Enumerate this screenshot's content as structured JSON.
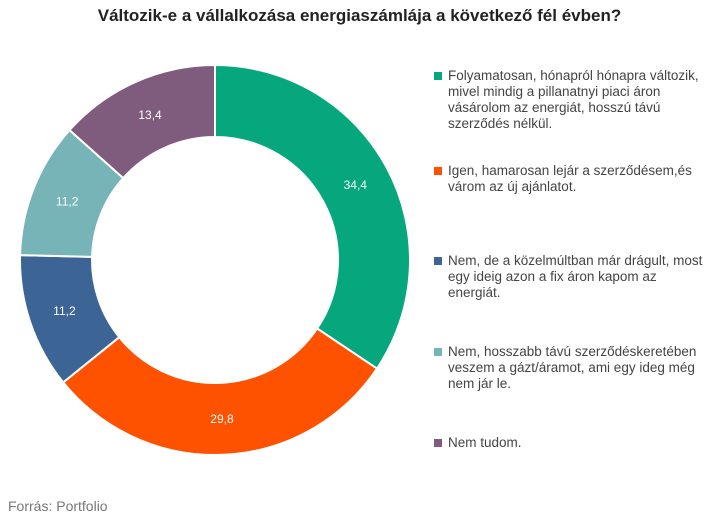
{
  "chart_data": {
    "type": "pie",
    "title": "Változik-e a vállalkozása energiaszámlája a következő fél évben?",
    "donut": true,
    "slices": [
      {
        "label": "Folyamatosan, hónapról hónapra változik, mivel mindig a pillanatnyi piaci áron vásárolom az energiát, hosszú távú szerződés nélkül.",
        "value": 34.4,
        "value_label": "34,4",
        "color": "#06a77d"
      },
      {
        "label": "Igen, hamarosan lejár a szerződésem,és várom az új ajánlatot.",
        "value": 29.8,
        "value_label": "29,8",
        "color": "#fe5200"
      },
      {
        "label": "Nem, de a közelmúltban már drágult, most egy ideig azon a fix áron kapom az energiát.",
        "value": 11.2,
        "value_label": "11,2",
        "color": "#3c6595"
      },
      {
        "label": "Nem, hosszabb távú szerződéskeretében veszem a gázt/áramot, ami egy ideg még nem jár le.",
        "value": 11.2,
        "value_label": "11,2",
        "color": "#76b4b8"
      },
      {
        "label": "Nem tudom.",
        "value": 13.4,
        "value_label": "13,4",
        "color": "#7f5c7e"
      }
    ],
    "legend_position": "right"
  },
  "source": "Forrás: Portfolio"
}
